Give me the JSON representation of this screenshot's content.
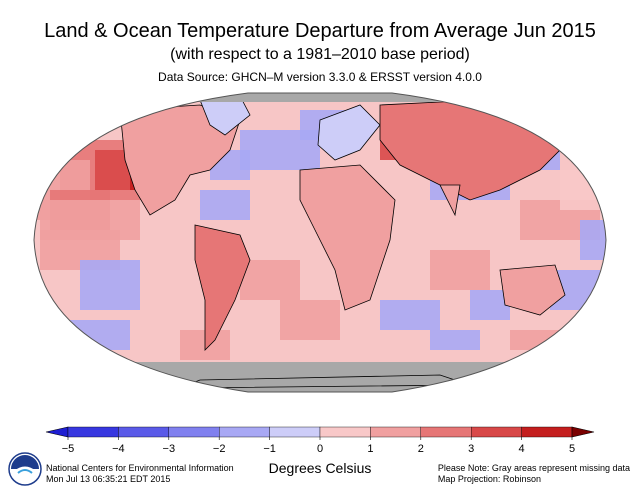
{
  "header": {
    "title": "Land & Ocean Temperature Departure from Average Jun 2015",
    "subtitle": "(with respect to a 1981–2010 base period)",
    "source": "Data Source: GHCN–M version 3.3.0 & ERSST version 4.0.0"
  },
  "map": {
    "projection_name": "Robinson",
    "ocean_base_color": "#f7c6c6",
    "missing_color": "#a8a8a8",
    "land_outline_color": "#000000"
  },
  "colorbar": {
    "unit_label": "Degrees Celsius",
    "ticks": [
      "−5",
      "−4",
      "−3",
      "−2",
      "−1",
      "0",
      "1",
      "2",
      "3",
      "4",
      "5"
    ],
    "colors": [
      "#1e1ed2",
      "#3737e0",
      "#5a5ae8",
      "#8080ef",
      "#a8a8f4",
      "#cdcdf8",
      "#f8c8c8",
      "#f0a0a0",
      "#e67676",
      "#d84848",
      "#c41e1e",
      "#7a0000"
    ]
  },
  "footer": {
    "org": "National Centers for Environmental Information",
    "timestamp": "Mon Jul 13 06:35:21 EDT 2015",
    "note": "Please Note: Gray areas represent missing data",
    "projection": "Map Projection: Robinson"
  },
  "logo": {
    "text": "NOAA"
  }
}
